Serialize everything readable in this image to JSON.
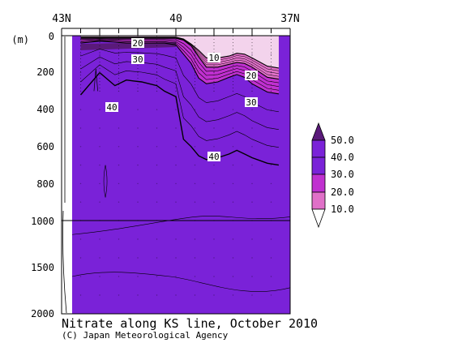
{
  "chart_data": {
    "type": "heatmap",
    "title": "Nitrate along KS line, October 2010",
    "credit": "(C) Japan Meteorological Agency",
    "x_axis": {
      "tick_labels": [
        "43N",
        "40",
        "37N"
      ],
      "tick_values": [
        43,
        40,
        37
      ]
    },
    "y_axis": {
      "unit_label": "(m)",
      "upper_ticks": [
        "0",
        "200",
        "400",
        "600",
        "800",
        "1000"
      ],
      "lower_ticks": [
        "1500",
        "2000"
      ],
      "upper_range": [
        0,
        1000
      ],
      "lower_range": [
        1000,
        2000
      ]
    },
    "colorbar": {
      "labels": [
        "50.0",
        "40.0",
        "30.0",
        "20.0",
        "10.0"
      ],
      "bins": [
        {
          "from": 40,
          "to": 50,
          "color": "#5a1a7a"
        },
        {
          "from": 30,
          "to": 40,
          "color": "#7a22d8"
        },
        {
          "from": 20,
          "to": 30,
          "color": "#c030d0"
        },
        {
          "from": 10,
          "to": 20,
          "color": "#e070c8"
        },
        {
          "from": 0,
          "to": 10,
          "color": "#f3d3ec"
        }
      ]
    },
    "contour_labels": [
      {
        "text": "20",
        "lat": 41.95,
        "depth": 25
      },
      {
        "text": "30",
        "lat": 41.95,
        "depth": 85
      },
      {
        "text": "10",
        "lat": 39.55,
        "depth": 80
      },
      {
        "text": "20",
        "lat": 38.5,
        "depth": 150
      },
      {
        "text": "30",
        "lat": 38.5,
        "depth": 240
      },
      {
        "text": "40",
        "lat": 42.5,
        "depth": 270
      },
      {
        "text": "40",
        "lat": 39.5,
        "depth": 440
      }
    ],
    "sections": [
      {
        "lat": [
          42.5,
          42.0,
          41.6,
          41.3,
          41.1,
          40.9,
          40.7,
          40.5,
          40.3,
          40.0,
          39.8,
          39.6,
          39.4,
          39.2,
          38.9,
          38.6,
          38.4,
          38.2,
          38.0,
          37.6,
          37.3
        ],
        "d10": [
          8,
          8,
          8,
          8,
          8,
          8,
          8,
          8,
          8,
          8,
          18,
          45,
          80,
          120,
          120,
          110,
          95,
          100,
          120,
          165,
          175
        ],
        "d20": [
          14,
          14,
          14,
          14,
          14,
          14,
          14,
          14,
          14,
          14,
          24,
          55,
          115,
          170,
          170,
          155,
          145,
          150,
          170,
          225,
          235
        ],
        "d30": [
          40,
          30,
          35,
          40,
          40,
          40,
          40,
          40,
          40,
          50,
          100,
          150,
          230,
          260,
          250,
          225,
          210,
          225,
          260,
          305,
          315
        ],
        "d40": [
          320,
          200,
          270,
          240,
          245,
          250,
          260,
          270,
          300,
          330,
          560,
          600,
          650,
          670,
          660,
          640,
          620,
          640,
          660,
          690,
          700
        ]
      }
    ]
  }
}
